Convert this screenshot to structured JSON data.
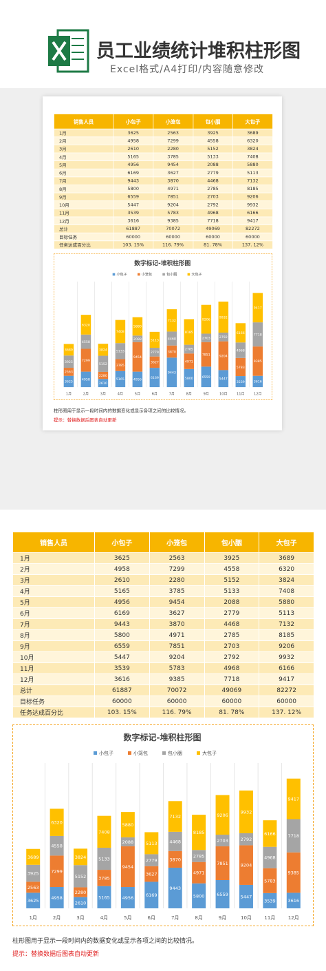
{
  "header": {
    "title": "员工业绩统计堆积柱形图",
    "subtitle": "Excel格式/A4打印/内容随意修改"
  },
  "table": {
    "columns": [
      "销售人员",
      "小包子",
      "小笼包",
      "包小胭",
      "大包子"
    ],
    "rows": [
      [
        "1月",
        3625,
        2563,
        3925,
        3689
      ],
      [
        "2月",
        4958,
        7299,
        4558,
        6320
      ],
      [
        "3月",
        2610,
        2280,
        5152,
        3824
      ],
      [
        "4月",
        5165,
        3785,
        5133,
        7408
      ],
      [
        "5月",
        4956,
        9454,
        2088,
        5880
      ],
      [
        "6月",
        6169,
        3627,
        2779,
        5113
      ],
      [
        "7月",
        9443,
        3870,
        4468,
        7132
      ],
      [
        "8月",
        5800,
        4971,
        2785,
        8185
      ],
      [
        "9月",
        6559,
        7851,
        2703,
        9206
      ],
      [
        "10月",
        5447,
        9204,
        2792,
        9932
      ],
      [
        "11月",
        3539,
        5783,
        4968,
        6166
      ],
      [
        "12月",
        3616,
        9385,
        7718,
        9417
      ],
      [
        "总计",
        61887,
        70072,
        49069,
        82272
      ],
      [
        "目标任务",
        60000,
        60000,
        60000,
        60000
      ],
      [
        "任务达成百分比",
        "103. 15%",
        "116. 79%",
        "81. 78%",
        "137. 12%"
      ]
    ]
  },
  "chart_data": {
    "type": "stacked_bar",
    "title": "数字标记-堆积柱形图",
    "categories": [
      "1月",
      "2月",
      "3月",
      "4月",
      "5月",
      "6月",
      "7月",
      "8月",
      "9月",
      "10月",
      "11月",
      "12月"
    ],
    "series": [
      {
        "name": "小包子",
        "color": "#5b9bd5",
        "values": [
          3625,
          4958,
          2610,
          5165,
          4956,
          6169,
          9443,
          5800,
          6559,
          5447,
          3539,
          3616
        ]
      },
      {
        "name": "小笼包",
        "color": "#ed7d31",
        "values": [
          2563,
          7299,
          2280,
          3785,
          9454,
          3627,
          3870,
          4971,
          7851,
          9204,
          5783,
          9385
        ]
      },
      {
        "name": "包小胭",
        "color": "#a5a5a5",
        "values": [
          3925,
          4558,
          5152,
          5133,
          2088,
          2779,
          4468,
          2785,
          2703,
          2792,
          4968,
          7718
        ]
      },
      {
        "name": "大包子",
        "color": "#ffc000",
        "values": [
          3689,
          6320,
          3824,
          7408,
          5880,
          5113,
          7132,
          8185,
          9206,
          9932,
          6166,
          9417
        ]
      }
    ],
    "ylim": [
      0,
      32000
    ],
    "legend": "top"
  },
  "notes": {
    "description": "柱形图用于显示一段时间内的数据变化或显示各项之间的比较情况。",
    "tip": "提示：替换数据后图表自动更新"
  }
}
